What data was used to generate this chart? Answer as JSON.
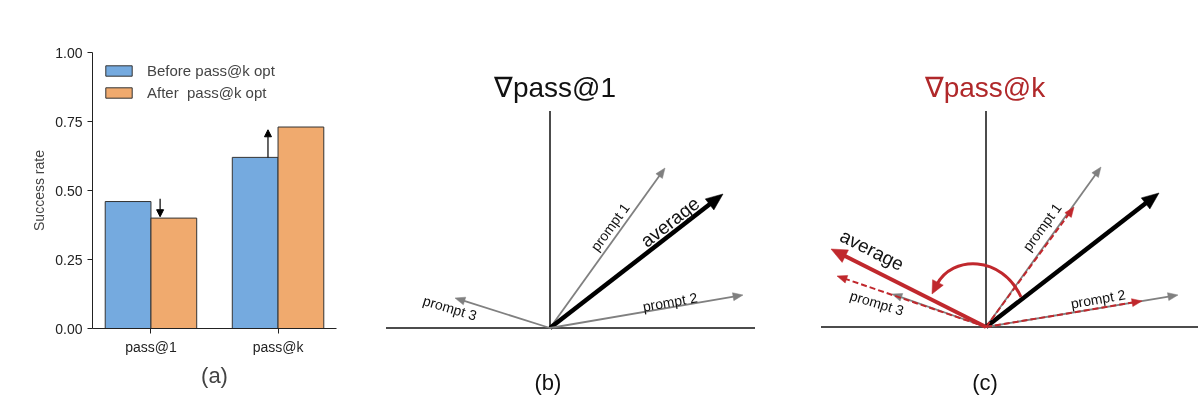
{
  "chart_data": [
    {
      "type": "bar",
      "categories": [
        "pass@1",
        "pass@k"
      ],
      "ylabel": "Success rate",
      "ylim": [
        0,
        1
      ],
      "yticks": [
        {
          "value": 0,
          "label": "0.00"
        },
        {
          "value": 0.25,
          "label": "0.25"
        },
        {
          "value": 0.5,
          "label": "0.50"
        },
        {
          "value": 0.75,
          "label": "0.75"
        },
        {
          "value": 1,
          "label": "1.00"
        }
      ],
      "legend": "top left",
      "series": [
        {
          "name": "Before pass@k opt",
          "color": "#75aadf",
          "values": [
            0.46,
            0.62
          ]
        },
        {
          "name": "After  pass@k opt",
          "color": "#f0aa6e",
          "values": [
            0.4,
            0.73
          ]
        }
      ],
      "annotations": [
        "(a)"
      ]
    },
    {
      "type": "other",
      "title": "∇pass@1",
      "annotations": [
        "prompt 1",
        "average",
        "prompt 2",
        "prompt 3",
        "(b)"
      ]
    },
    {
      "type": "other",
      "title": "∇pass@k",
      "annotations": [
        "prompt 1",
        "average",
        "prompt 2",
        "prompt 3",
        "(c)"
      ]
    }
  ]
}
